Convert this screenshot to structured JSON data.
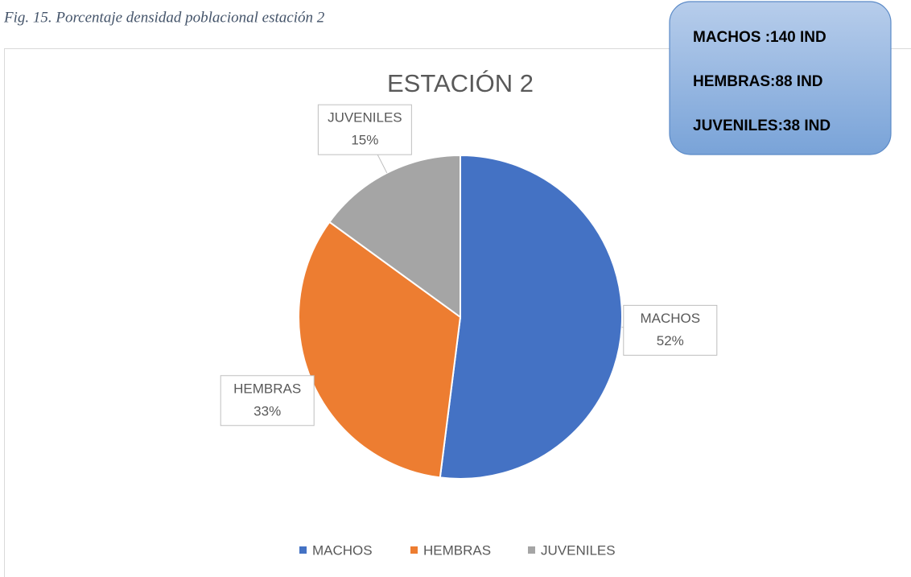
{
  "caption": "Fig. 15. Porcentaje densidad poblacional estación 2",
  "chart_data": {
    "type": "pie",
    "title": "ESTACIÓN 2",
    "categories": [
      "MACHOS",
      "HEMBRAS",
      "JUVENILES"
    ],
    "values": [
      52,
      33,
      15
    ],
    "value_labels": [
      "52%",
      "33%",
      "15%"
    ],
    "colors": [
      "#4472c4",
      "#ed7d31",
      "#a5a5a5"
    ],
    "legend": "bottom"
  },
  "annotation": {
    "lines": [
      "MACHOS :140 IND",
      "HEMBRAS:88 IND",
      "JUVENILES:38 IND"
    ]
  }
}
